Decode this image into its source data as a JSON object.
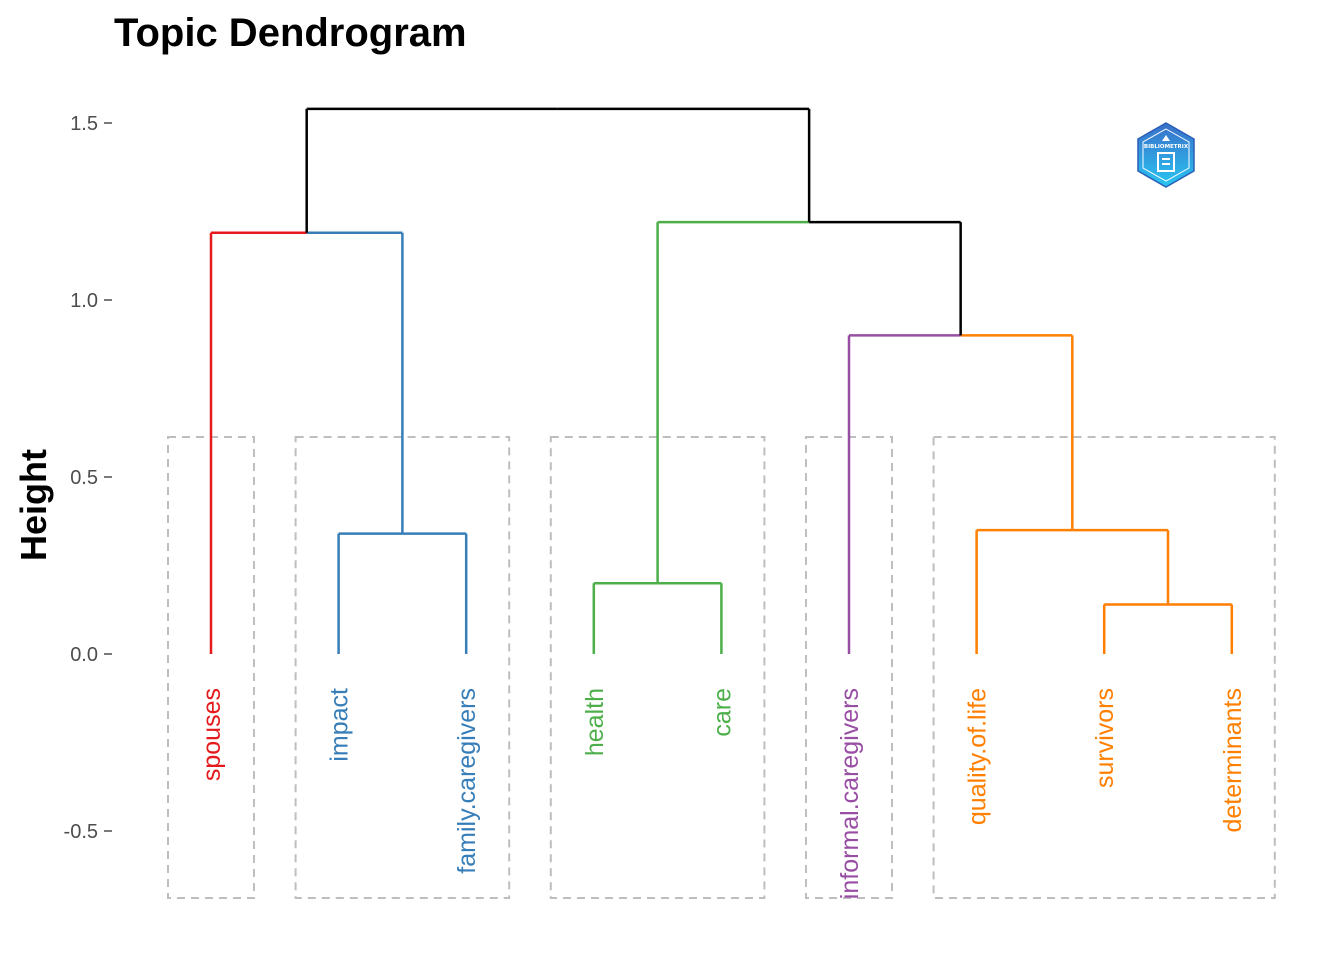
{
  "chart_data": {
    "type": "dendrogram",
    "title": "Topic Dendrogram",
    "xlabel": "",
    "ylabel": "Height",
    "ylim": [
      -0.7,
      1.55
    ],
    "yticks": [
      -0.5,
      0.0,
      0.5,
      1.0,
      1.5
    ],
    "ytick_labels": [
      "-0.5",
      "0.0",
      "0.5",
      "1.0",
      "1.5"
    ],
    "grid": false,
    "cluster_boxes": true,
    "leaves": [
      {
        "label": "spouses",
        "cluster": 1
      },
      {
        "label": "impact",
        "cluster": 2
      },
      {
        "label": "family.caregivers",
        "cluster": 2
      },
      {
        "label": "health",
        "cluster": 3
      },
      {
        "label": "care",
        "cluster": 3
      },
      {
        "label": "informal.caregivers",
        "cluster": 4
      },
      {
        "label": "quality.of.life",
        "cluster": 5
      },
      {
        "label": "survivors",
        "cluster": 5
      },
      {
        "label": "determinants",
        "cluster": 5
      }
    ],
    "clusters": [
      {
        "id": 1,
        "color": "#E41A1C"
      },
      {
        "id": 2,
        "color": "#377EB8"
      },
      {
        "id": 3,
        "color": "#4DAF4A"
      },
      {
        "id": 4,
        "color": "#984EA3"
      },
      {
        "id": 5,
        "color": "#FF7F00"
      }
    ],
    "merges": [
      {
        "left": "impact",
        "right": "family.caregivers",
        "height": 0.34,
        "color": "#377EB8"
      },
      {
        "left": "health",
        "right": "care",
        "height": 0.2,
        "color": "#4DAF4A"
      },
      {
        "left": "survivors",
        "right": "determinants",
        "height": 0.14,
        "color": "#FF7F00"
      },
      {
        "left": "quality.of.life",
        "right": "survivors+determinants",
        "height": 0.35,
        "color": "#FF7F00"
      },
      {
        "left": "informal.caregivers",
        "right": "quality.of.life+survivors+determinants",
        "height": 0.9,
        "color": "#000000",
        "left_color": "#984EA3",
        "right_color": "#FF7F00"
      },
      {
        "left": "spouses",
        "right": "impact+family.caregivers",
        "height": 1.19,
        "color": "#000000",
        "left_color": "#E41A1C",
        "right_color": "#377EB8"
      },
      {
        "left": "health+care",
        "right": "informal.caregivers+quality.of.life+survivors+determinants",
        "height": 1.22,
        "color": "#000000",
        "left_color": "#4DAF4A",
        "right_color": "#000000"
      },
      {
        "left": "spouses+impact+family.caregivers",
        "right": "health+care+informal.caregivers+quality.of.life+survivors+determinants",
        "height": 1.54,
        "color": "#000000"
      }
    ],
    "box_color": "#BEBEBE"
  },
  "logo": {
    "text": "BIBLIOMETRIX",
    "icon": "bibliometrix-logo"
  }
}
